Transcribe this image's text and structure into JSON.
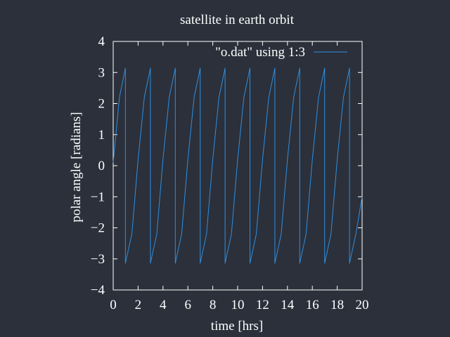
{
  "chart_data": {
    "type": "line",
    "title": "satellite in earth orbit",
    "xlabel": "time [hrs]",
    "ylabel": "polar angle [radians]",
    "xlim": [
      0,
      20
    ],
    "ylim": [
      -4,
      4
    ],
    "xticks": [
      "0",
      "2",
      "4",
      "6",
      "8",
      "10",
      "12",
      "14",
      "16",
      "18",
      "20"
    ],
    "yticks": [
      "4",
      "3",
      "2",
      "1",
      "0",
      "−1",
      "−2",
      "−3",
      "−4"
    ],
    "grid": false,
    "legend_position": "top-right",
    "series": [
      {
        "name": "\"o.dat\" using 1:3",
        "color": "#2f8fe0",
        "x": [
          0,
          0.5,
          0.98,
          0.98,
          1.5,
          2.0,
          2.5,
          2.99,
          2.99,
          3.5,
          4.0,
          4.5,
          4.99,
          4.99,
          5.5,
          6.0,
          6.5,
          6.99,
          6.99,
          7.5,
          8.0,
          8.5,
          8.99,
          8.99,
          9.5,
          10.0,
          10.5,
          10.99,
          10.99,
          11.5,
          12.0,
          12.5,
          12.99,
          12.99,
          13.5,
          14.0,
          14.5,
          14.99,
          14.99,
          15.5,
          16.0,
          16.5,
          16.99,
          16.99,
          17.5,
          18.0,
          18.5,
          18.99,
          18.99,
          19.5,
          20.0
        ],
        "y": [
          0.1,
          2.2,
          3.14,
          -3.14,
          -2.2,
          0.2,
          2.2,
          3.14,
          -3.14,
          -2.2,
          0.2,
          2.2,
          3.14,
          -3.14,
          -2.2,
          0.2,
          2.2,
          3.14,
          -3.14,
          -2.2,
          0.2,
          2.2,
          3.14,
          -3.14,
          -2.2,
          0.2,
          2.2,
          3.14,
          -3.14,
          -2.2,
          0.2,
          2.2,
          3.14,
          -3.14,
          -2.2,
          0.2,
          2.2,
          3.14,
          -3.14,
          -2.2,
          0.2,
          2.2,
          3.14,
          -3.14,
          -2.2,
          0.2,
          2.2,
          3.14,
          -3.14,
          -2.2,
          -1.0
        ]
      }
    ]
  }
}
